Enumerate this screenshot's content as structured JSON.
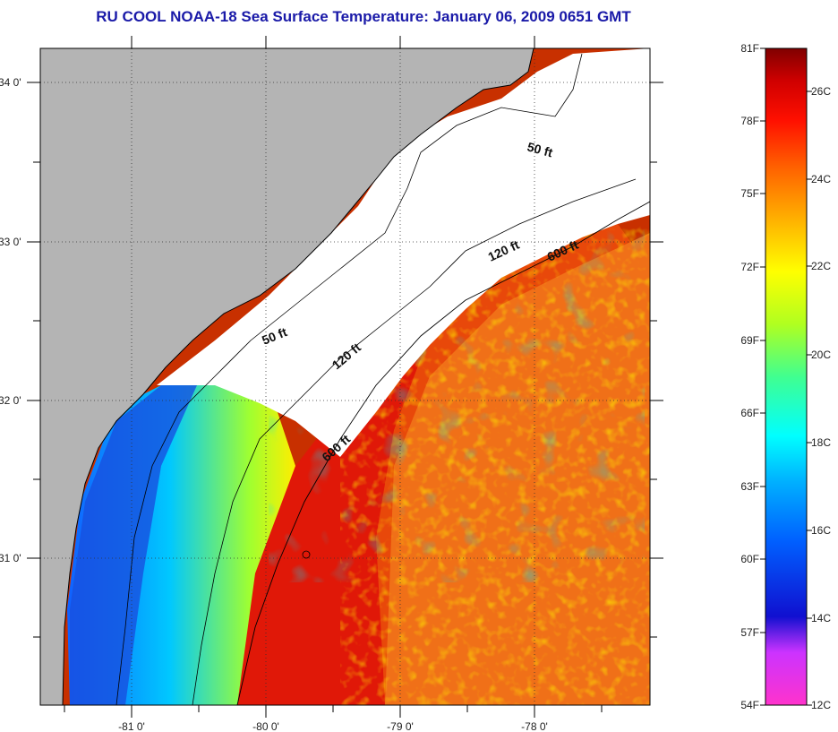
{
  "title": "RU COOL  NOAA-18  Sea Surface Temperature:  January 06, 2009 0651 GMT",
  "map": {
    "lat_ticks": [
      {
        "value": 34,
        "label": "34 0'"
      },
      {
        "value": 33,
        "label": "33 0'"
      },
      {
        "value": 32,
        "label": "32 0'"
      },
      {
        "value": 31,
        "label": "31 0'"
      }
    ],
    "lon_ticks": [
      {
        "value": -81,
        "label": "-81 0'"
      },
      {
        "value": -80,
        "label": "-80 0'"
      },
      {
        "value": -79,
        "label": "-79 0'"
      },
      {
        "value": -78,
        "label": "-78 0'"
      }
    ],
    "depth_labels": [
      {
        "id": "50ft-north",
        "text": "50 ft"
      },
      {
        "id": "50ft-south",
        "text": "50 ft"
      },
      {
        "id": "120ft-north",
        "text": "120 ft"
      },
      {
        "id": "120ft-south",
        "text": "120 ft"
      },
      {
        "id": "600ft-north",
        "text": "600 ft"
      },
      {
        "id": "600ft-south",
        "text": "600 ft"
      }
    ],
    "colors": {
      "land": "#b4b4b4",
      "cloud": "#ffffff",
      "coast": "#000000"
    }
  },
  "colorbar": {
    "fahrenheit": [
      "81F",
      "78F",
      "75F",
      "72F",
      "69F",
      "66F",
      "63F",
      "60F",
      "57F",
      "54F"
    ],
    "celsius": [
      "26C",
      "24C",
      "22C",
      "20C",
      "18C",
      "16C",
      "14C",
      "12C"
    ],
    "stops": [
      "#ff33cc",
      "#cc33ff",
      "#1010d0",
      "#0060ff",
      "#00b0ff",
      "#00ffff",
      "#40ff90",
      "#b0ff20",
      "#ffff00",
      "#ffb000",
      "#ff6000",
      "#ff1000",
      "#d00000",
      "#800000"
    ]
  }
}
